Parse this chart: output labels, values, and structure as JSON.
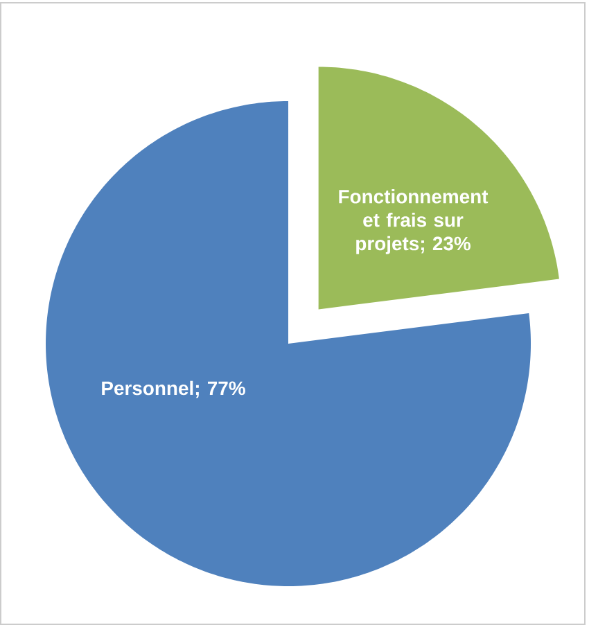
{
  "chart_data": {
    "type": "pie",
    "categories": [
      "Fonctionnement et frais sur projets",
      "Personnel"
    ],
    "values": [
      23,
      77
    ],
    "colors": [
      "#9bbb59",
      "#4f81bd"
    ],
    "value_labels": [
      "; 23%",
      "; 77%"
    ]
  }
}
